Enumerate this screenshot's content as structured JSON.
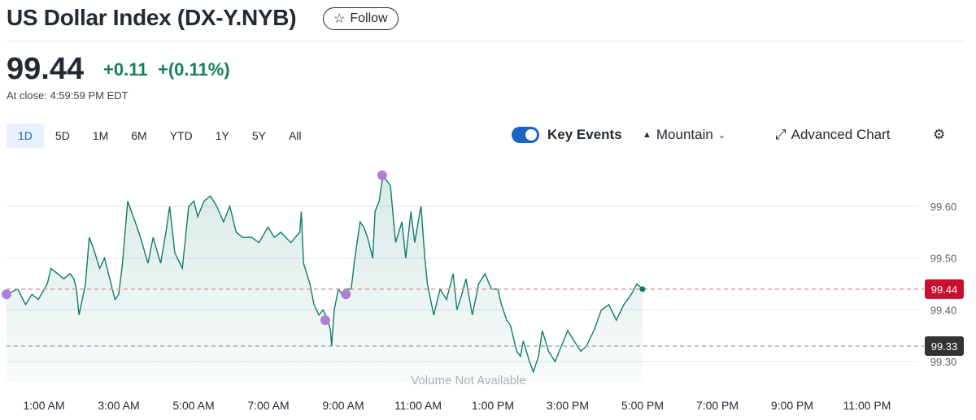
{
  "header": {
    "title": "US Dollar Index (DX-Y.NYB)",
    "follow_label": "Follow"
  },
  "quote": {
    "price": "99.44",
    "change": "+0.11",
    "change_pct": "+(0.11%)",
    "close_time": "At close: 4:59:59 PM EDT",
    "color_up": "#1a7f5e"
  },
  "ranges": [
    {
      "label": "1D",
      "active": true
    },
    {
      "label": "5D"
    },
    {
      "label": "1M"
    },
    {
      "label": "6M"
    },
    {
      "label": "YTD"
    },
    {
      "label": "1Y"
    },
    {
      "label": "5Y"
    },
    {
      "label": "All"
    }
  ],
  "toolbar": {
    "key_events": "Key Events",
    "key_events_on": true,
    "chart_type": "Mountain",
    "advanced": "Advanced Chart",
    "settings_icon": "gear-icon"
  },
  "chart_data": {
    "type": "area",
    "x_unit": "hours since midnight",
    "xlim": [
      0,
      24
    ],
    "ylim": [
      99.26,
      99.685
    ],
    "y_ticks": [
      "99.30",
      "99.40",
      "99.50",
      "99.60"
    ],
    "y_tick_values": [
      99.3,
      99.4,
      99.5,
      99.6
    ],
    "x_ticks": [
      "1:00 AM",
      "3:00 AM",
      "5:00 AM",
      "7:00 AM",
      "9:00 AM",
      "11:00 AM",
      "1:00 PM",
      "3:00 PM",
      "5:00 PM",
      "7:00 PM",
      "9:00 PM",
      "11:00 PM"
    ],
    "x_tick_values": [
      1,
      3,
      5,
      7,
      9,
      11,
      13,
      15,
      17,
      19,
      21,
      23
    ],
    "current": {
      "value": 99.44,
      "label": "99.44",
      "color": "#c8102e"
    },
    "previous_close": {
      "value": 99.33,
      "label": "99.33",
      "color": "#333"
    },
    "line_color": "#0f7d6a",
    "volume_note": "Volume Not Available",
    "key_events": [
      {
        "t": 0,
        "v": 99.43
      },
      {
        "t": 8.52,
        "v": 99.38
      },
      {
        "t": 9.07,
        "v": 99.43
      },
      {
        "t": 10.04,
        "v": 99.66
      }
    ],
    "key_event_color": "#b07fd8",
    "series": [
      [
        0,
        99.43
      ],
      [
        0.3,
        99.44
      ],
      [
        0.51,
        99.41
      ],
      [
        0.68,
        99.43
      ],
      [
        0.85,
        99.42
      ],
      [
        1.09,
        99.45
      ],
      [
        1.19,
        99.48
      ],
      [
        1.36,
        99.47
      ],
      [
        1.53,
        99.46
      ],
      [
        1.7,
        99.47
      ],
      [
        1.8,
        99.46
      ],
      [
        1.87,
        99.44
      ],
      [
        1.94,
        99.39
      ],
      [
        2.11,
        99.45
      ],
      [
        2.21,
        99.54
      ],
      [
        2.32,
        99.52
      ],
      [
        2.49,
        99.48
      ],
      [
        2.62,
        99.5
      ],
      [
        2.76,
        99.46
      ],
      [
        2.9,
        99.42
      ],
      [
        3.0,
        99.43
      ],
      [
        3.1,
        99.49
      ],
      [
        3.24,
        99.61
      ],
      [
        3.34,
        99.59
      ],
      [
        3.44,
        99.57
      ],
      [
        3.58,
        99.54
      ],
      [
        3.78,
        99.49
      ],
      [
        3.92,
        99.54
      ],
      [
        4.12,
        99.49
      ],
      [
        4.26,
        99.55
      ],
      [
        4.36,
        99.6
      ],
      [
        4.5,
        99.51
      ],
      [
        4.7,
        99.48
      ],
      [
        4.87,
        99.6
      ],
      [
        5.01,
        99.61
      ],
      [
        5.11,
        99.58
      ],
      [
        5.28,
        99.61
      ],
      [
        5.45,
        99.62
      ],
      [
        5.62,
        99.6
      ],
      [
        5.8,
        99.57
      ],
      [
        5.97,
        99.6
      ],
      [
        6.14,
        99.55
      ],
      [
        6.31,
        99.54
      ],
      [
        6.55,
        99.54
      ],
      [
        6.75,
        99.53
      ],
      [
        6.99,
        99.56
      ],
      [
        7.16,
        99.54
      ],
      [
        7.33,
        99.55
      ],
      [
        7.6,
        99.53
      ],
      [
        7.84,
        99.55
      ],
      [
        7.88,
        99.59
      ],
      [
        7.94,
        99.49
      ],
      [
        8.11,
        99.45
      ],
      [
        8.22,
        99.41
      ],
      [
        8.35,
        99.39
      ],
      [
        8.46,
        99.4
      ],
      [
        8.59,
        99.38
      ],
      [
        8.66,
        99.36
      ],
      [
        8.69,
        99.33
      ],
      [
        8.76,
        99.4
      ],
      [
        8.87,
        99.44
      ],
      [
        8.97,
        99.43
      ],
      [
        9.04,
        99.44
      ],
      [
        9.21,
        99.44
      ],
      [
        9.31,
        99.5
      ],
      [
        9.45,
        99.57
      ],
      [
        9.55,
        99.56
      ],
      [
        9.65,
        99.54
      ],
      [
        9.79,
        99.5
      ],
      [
        9.85,
        99.59
      ],
      [
        9.96,
        99.61
      ],
      [
        10.06,
        99.66
      ],
      [
        10.16,
        99.65
      ],
      [
        10.26,
        99.64
      ],
      [
        10.4,
        99.53
      ],
      [
        10.57,
        99.57
      ],
      [
        10.67,
        99.5
      ],
      [
        10.81,
        99.59
      ],
      [
        10.91,
        99.53
      ],
      [
        11.05,
        99.59
      ],
      [
        11.08,
        99.6
      ],
      [
        11.18,
        99.5
      ],
      [
        11.25,
        99.45
      ],
      [
        11.42,
        99.39
      ],
      [
        11.59,
        99.44
      ],
      [
        11.76,
        99.42
      ],
      [
        11.94,
        99.47
      ],
      [
        12.04,
        99.4
      ],
      [
        12.17,
        99.43
      ],
      [
        12.28,
        99.46
      ],
      [
        12.45,
        99.39
      ],
      [
        12.62,
        99.45
      ],
      [
        12.79,
        99.47
      ],
      [
        12.96,
        99.44
      ],
      [
        13.13,
        99.44
      ],
      [
        13.23,
        99.41
      ],
      [
        13.37,
        99.38
      ],
      [
        13.47,
        99.37
      ],
      [
        13.64,
        99.32
      ],
      [
        13.74,
        99.31
      ],
      [
        13.81,
        99.34
      ],
      [
        13.98,
        99.3
      ],
      [
        14.08,
        99.28
      ],
      [
        14.22,
        99.31
      ],
      [
        14.32,
        99.36
      ],
      [
        14.49,
        99.32
      ],
      [
        14.66,
        99.3
      ],
      [
        14.83,
        99.33
      ],
      [
        15.0,
        99.36
      ],
      [
        15.17,
        99.34
      ],
      [
        15.35,
        99.32
      ],
      [
        15.5,
        99.33
      ],
      [
        15.7,
        99.36
      ],
      [
        15.9,
        99.4
      ],
      [
        16.1,
        99.41
      ],
      [
        16.3,
        99.38
      ],
      [
        16.5,
        99.41
      ],
      [
        16.7,
        99.43
      ],
      [
        16.85,
        99.45
      ],
      [
        17.0,
        99.44
      ]
    ]
  }
}
